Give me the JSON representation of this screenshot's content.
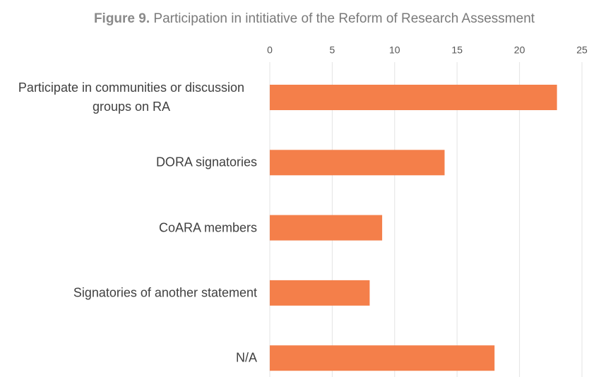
{
  "chart_data": {
    "type": "bar",
    "orientation": "horizontal",
    "title_label": "Figure 9.",
    "title": "Participation in intitiative of the Reform of Research Assessment",
    "categories": [
      "Participate in communities or discussion groups on RA",
      "DORA signatories",
      "CoARA members",
      "Signatories of another statement",
      "N/A"
    ],
    "values": [
      23,
      14,
      9,
      8,
      18
    ],
    "color": "#f47f4a",
    "xlim": [
      0,
      25
    ],
    "xticks": [
      0,
      5,
      10,
      15,
      20,
      25
    ],
    "grid": true
  }
}
